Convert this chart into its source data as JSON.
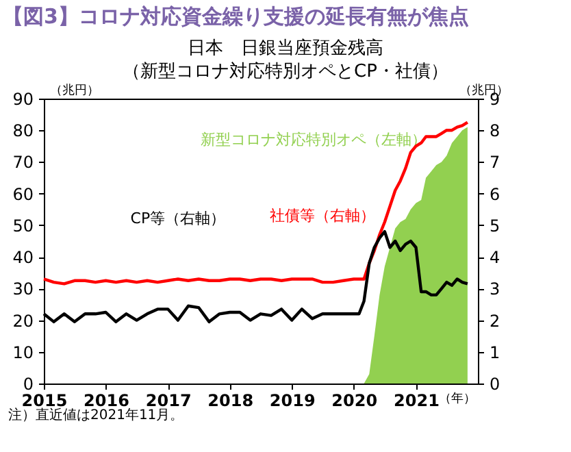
{
  "chart_data": {
    "type": "line",
    "title": "【図3】コロナ対応資金繰り支援の延長有無が焦点",
    "subtitle": "日本　日銀当座預金残高（新型コロナ対応特別オペとCP・社債）",
    "ylabel": "（兆円）",
    "y2label": "（兆円）",
    "xlabel": "（年）",
    "annotations": [
      "注）直近値は2021年11月。"
    ],
    "x": [
      "2015-01",
      "2015-03",
      "2015-05",
      "2015-07",
      "2015-09",
      "2015-11",
      "2016-01",
      "2016-03",
      "2016-05",
      "2016-07",
      "2016-09",
      "2016-11",
      "2017-01",
      "2017-03",
      "2017-05",
      "2017-07",
      "2017-09",
      "2017-11",
      "2018-01",
      "2018-03",
      "2018-05",
      "2018-07",
      "2018-09",
      "2018-11",
      "2019-01",
      "2019-03",
      "2019-05",
      "2019-07",
      "2019-09",
      "2019-11",
      "2020-01",
      "2020-02",
      "2020-03",
      "2020-04",
      "2020-05",
      "2020-06",
      "2020-07",
      "2020-08",
      "2020-09",
      "2020-10",
      "2020-11",
      "2020-12",
      "2021-01",
      "2021-02",
      "2021-03",
      "2021-04",
      "2021-05",
      "2021-06",
      "2021-07",
      "2021-08",
      "2021-09",
      "2021-10",
      "2021-11"
    ],
    "series": [
      {
        "name": "新型コロナ対応特別オペ（左軸）",
        "type": "area",
        "color": "#92d050",
        "x": [
          "2020-03",
          "2020-04",
          "2020-05",
          "2020-06",
          "2020-07",
          "2020-08",
          "2020-09",
          "2020-10",
          "2020-11",
          "2020-12",
          "2021-01",
          "2021-02",
          "2021-03",
          "2021-04",
          "2021-05",
          "2021-06",
          "2021-07",
          "2021-08",
          "2021-09",
          "2021-10",
          "2021-11"
        ],
        "values": [
          0,
          3,
          15,
          28,
          37,
          43,
          49,
          51,
          52,
          55,
          57,
          58,
          65,
          67,
          69,
          70,
          72,
          76,
          78,
          80,
          81
        ]
      },
      {
        "name": "社債等（右軸）",
        "axis": "y2",
        "color": "#ff0000",
        "values": [
          3.3,
          3.2,
          3.15,
          3.25,
          3.25,
          3.2,
          3.25,
          3.2,
          3.25,
          3.2,
          3.25,
          3.2,
          3.25,
          3.3,
          3.25,
          3.3,
          3.25,
          3.25,
          3.3,
          3.3,
          3.25,
          3.3,
          3.3,
          3.25,
          3.3,
          3.3,
          3.3,
          3.2,
          3.2,
          3.25,
          3.3,
          3.3,
          3.3,
          3.8,
          4.2,
          4.7,
          5.1,
          5.6,
          6.1,
          6.4,
          6.8,
          7.3,
          7.5,
          7.6,
          7.8,
          7.8,
          7.8,
          7.9,
          8.0,
          8.0,
          8.1,
          8.15,
          8.25
        ]
      },
      {
        "name": "CP等（右軸）",
        "axis": "y2",
        "color": "#000000",
        "values": [
          2.2,
          1.95,
          2.2,
          1.95,
          2.2,
          2.2,
          2.25,
          1.95,
          2.2,
          2.0,
          2.2,
          2.35,
          2.35,
          2.0,
          2.45,
          2.4,
          1.95,
          2.2,
          2.25,
          2.25,
          2.0,
          2.2,
          2.15,
          2.35,
          2.0,
          2.35,
          2.05,
          2.2,
          2.2,
          2.2,
          2.2,
          2.2,
          2.6,
          3.8,
          4.3,
          4.6,
          4.8,
          4.3,
          4.5,
          4.2,
          4.4,
          4.5,
          4.3,
          2.9,
          2.9,
          2.8,
          2.8,
          3.0,
          3.2,
          3.1,
          3.3,
          3.2,
          3.15
        ]
      }
    ],
    "xlim": [
      "2015-01",
      "2022-01"
    ],
    "xticks": [
      "2015",
      "2016",
      "2017",
      "2018",
      "2019",
      "2020",
      "2021"
    ],
    "ylim": [
      0,
      90
    ],
    "yticks": [
      0,
      10,
      20,
      30,
      40,
      50,
      60,
      70,
      80,
      90
    ],
    "y2lim": [
      0,
      9
    ],
    "y2ticks": [
      0,
      1,
      2,
      3,
      4,
      5,
      6,
      7,
      8,
      9
    ],
    "legend": false,
    "grid": false
  }
}
